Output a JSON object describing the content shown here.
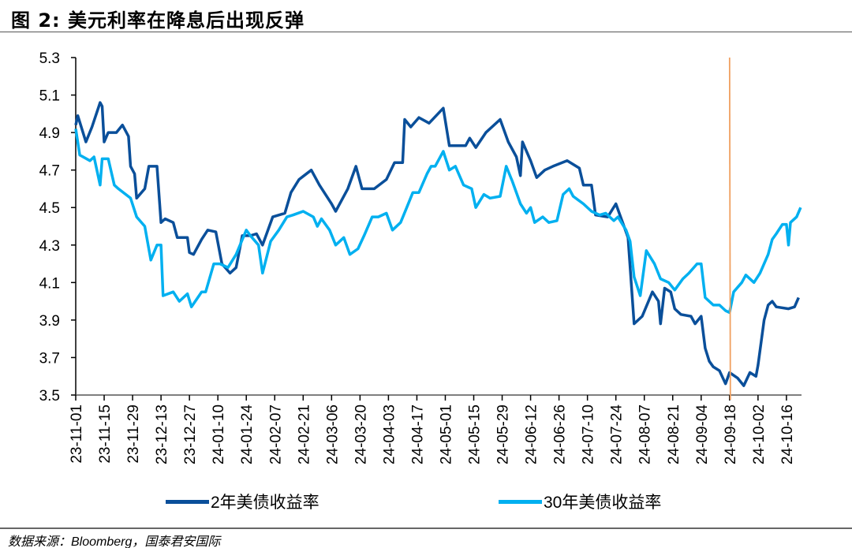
{
  "title": "图 2:  美元利率在降息后出现反弹",
  "source": "数据来源：Bloomberg，国泰君安国际",
  "chart_data": {
    "type": "line",
    "title": "图 2:  美元利率在降息后出现反弹",
    "ylim": [
      3.5,
      5.3
    ],
    "y_ticks": [
      "3.5",
      "3.7",
      "3.9",
      "4.1",
      "4.3",
      "4.5",
      "4.7",
      "4.9",
      "5.1",
      "5.3"
    ],
    "x_range": [
      "23-11-01",
      "24-10-23"
    ],
    "x_tick_labels": [
      "23-11-01",
      "23-11-15",
      "23-11-29",
      "23-12-13",
      "23-12-27",
      "24-01-10",
      "24-01-24",
      "24-02-07",
      "24-02-21",
      "24-03-06",
      "24-03-20",
      "24-04-03",
      "24-04-17",
      "24-05-01",
      "24-05-15",
      "24-05-29",
      "24-06-12",
      "24-06-26",
      "24-07-10",
      "24-07-24",
      "24-08-07",
      "24-08-21",
      "24-09-04",
      "24-09-18",
      "24-10-02",
      "24-10-16"
    ],
    "grid": false,
    "legend_placement": "bottom",
    "vertical_marker": {
      "date": "24-09-18",
      "color": "#f0a060"
    },
    "series": [
      {
        "name": "2年美债收益率",
        "color": "#0a4f9a",
        "points": [
          [
            "23-11-01",
            4.94
          ],
          [
            "23-11-02",
            4.99
          ],
          [
            "23-11-06",
            4.85
          ],
          [
            "23-11-09",
            4.93
          ],
          [
            "23-11-13",
            5.06
          ],
          [
            "23-11-14",
            5.04
          ],
          [
            "23-11-15",
            4.85
          ],
          [
            "23-11-17",
            4.9
          ],
          [
            "23-11-21",
            4.9
          ],
          [
            "23-11-24",
            4.94
          ],
          [
            "23-11-27",
            4.88
          ],
          [
            "23-11-28",
            4.72
          ],
          [
            "23-11-30",
            4.68
          ],
          [
            "23-12-01",
            4.55
          ],
          [
            "23-12-05",
            4.6
          ],
          [
            "23-12-07",
            4.72
          ],
          [
            "23-12-11",
            4.72
          ],
          [
            "23-12-13",
            4.42
          ],
          [
            "23-12-15",
            4.44
          ],
          [
            "23-12-19",
            4.42
          ],
          [
            "23-12-21",
            4.34
          ],
          [
            "23-12-26",
            4.34
          ],
          [
            "23-12-27",
            4.26
          ],
          [
            "23-12-29",
            4.25
          ],
          [
            "24-01-02",
            4.33
          ],
          [
            "24-01-05",
            4.38
          ],
          [
            "24-01-09",
            4.37
          ],
          [
            "24-01-12",
            4.2
          ],
          [
            "24-01-16",
            4.15
          ],
          [
            "24-01-19",
            4.18
          ],
          [
            "24-01-22",
            4.35
          ],
          [
            "24-01-26",
            4.35
          ],
          [
            "24-01-29",
            4.36
          ],
          [
            "24-02-01",
            4.3
          ],
          [
            "24-02-06",
            4.45
          ],
          [
            "24-02-12",
            4.47
          ],
          [
            "24-02-15",
            4.58
          ],
          [
            "24-02-19",
            4.65
          ],
          [
            "24-02-25",
            4.7
          ],
          [
            "24-02-29",
            4.62
          ],
          [
            "24-03-06",
            4.52
          ],
          [
            "24-03-08",
            4.48
          ],
          [
            "24-03-14",
            4.6
          ],
          [
            "24-03-18",
            4.72
          ],
          [
            "24-03-21",
            4.6
          ],
          [
            "24-03-27",
            4.6
          ],
          [
            "24-04-02",
            4.65
          ],
          [
            "24-04-06",
            4.74
          ],
          [
            "24-04-10",
            4.74
          ],
          [
            "24-04-11",
            4.97
          ],
          [
            "24-04-14",
            4.93
          ],
          [
            "24-04-18",
            4.98
          ],
          [
            "24-04-23",
            4.95
          ],
          [
            "24-04-30",
            5.03
          ],
          [
            "24-05-03",
            4.83
          ],
          [
            "24-05-11",
            4.83
          ],
          [
            "24-05-13",
            4.87
          ],
          [
            "24-05-16",
            4.82
          ],
          [
            "24-05-21",
            4.9
          ],
          [
            "24-05-28",
            4.97
          ],
          [
            "24-06-01",
            4.85
          ],
          [
            "24-06-05",
            4.77
          ],
          [
            "24-06-07",
            4.67
          ],
          [
            "24-06-08",
            4.85
          ],
          [
            "24-06-12",
            4.75
          ],
          [
            "24-06-15",
            4.66
          ],
          [
            "24-06-19",
            4.7
          ],
          [
            "24-06-23",
            4.72
          ],
          [
            "24-06-30",
            4.75
          ],
          [
            "24-07-06",
            4.71
          ],
          [
            "24-07-08",
            4.62
          ],
          [
            "24-07-12",
            4.62
          ],
          [
            "24-07-14",
            4.46
          ],
          [
            "24-07-20",
            4.45
          ],
          [
            "24-07-24",
            4.52
          ],
          [
            "24-07-28",
            4.4
          ],
          [
            "24-07-30",
            4.34
          ],
          [
            "24-08-02",
            3.88
          ],
          [
            "24-08-06",
            3.92
          ],
          [
            "24-08-11",
            4.05
          ],
          [
            "24-08-14",
            4.0
          ],
          [
            "24-08-15",
            3.88
          ],
          [
            "24-08-17",
            4.07
          ],
          [
            "24-08-20",
            4.05
          ],
          [
            "24-08-22",
            3.96
          ],
          [
            "24-08-25",
            3.93
          ],
          [
            "24-08-30",
            3.92
          ],
          [
            "24-09-01",
            3.88
          ],
          [
            "24-09-04",
            3.92
          ],
          [
            "24-09-06",
            3.75
          ],
          [
            "24-09-08",
            3.68
          ],
          [
            "24-09-10",
            3.65
          ],
          [
            "24-09-13",
            3.63
          ],
          [
            "24-09-16",
            3.56
          ],
          [
            "24-09-18",
            3.62
          ],
          [
            "24-09-22",
            3.59
          ],
          [
            "24-09-25",
            3.55
          ],
          [
            "24-09-28",
            3.62
          ],
          [
            "24-10-01",
            3.6
          ],
          [
            "24-10-02",
            3.66
          ],
          [
            "24-10-05",
            3.9
          ],
          [
            "24-10-07",
            3.98
          ],
          [
            "24-10-09",
            4.0
          ],
          [
            "24-10-11",
            3.97
          ],
          [
            "24-10-17",
            3.96
          ],
          [
            "24-10-20",
            3.97
          ],
          [
            "24-10-22",
            4.02
          ]
        ]
      },
      {
        "name": "30年美债收益率",
        "color": "#00b0f0",
        "points": [
          [
            "23-11-01",
            4.92
          ],
          [
            "23-11-03",
            4.78
          ],
          [
            "23-11-08",
            4.75
          ],
          [
            "23-11-10",
            4.77
          ],
          [
            "23-11-13",
            4.62
          ],
          [
            "23-11-14",
            4.76
          ],
          [
            "23-11-17",
            4.76
          ],
          [
            "23-11-20",
            4.62
          ],
          [
            "23-11-22",
            4.6
          ],
          [
            "23-11-28",
            4.55
          ],
          [
            "23-12-01",
            4.45
          ],
          [
            "23-12-05",
            4.4
          ],
          [
            "23-12-08",
            4.22
          ],
          [
            "23-12-11",
            4.3
          ],
          [
            "23-12-13",
            4.3
          ],
          [
            "23-12-14",
            4.03
          ],
          [
            "23-12-19",
            4.05
          ],
          [
            "23-12-22",
            4.0
          ],
          [
            "23-12-26",
            4.04
          ],
          [
            "23-12-28",
            3.97
          ],
          [
            "24-01-02",
            4.05
          ],
          [
            "24-01-04",
            4.05
          ],
          [
            "24-01-08",
            4.2
          ],
          [
            "24-01-11",
            4.2
          ],
          [
            "24-01-15",
            4.18
          ],
          [
            "24-01-19",
            4.25
          ],
          [
            "24-01-24",
            4.38
          ],
          [
            "24-01-26",
            4.35
          ],
          [
            "24-01-30",
            4.3
          ],
          [
            "24-02-01",
            4.15
          ],
          [
            "24-02-05",
            4.32
          ],
          [
            "24-02-09",
            4.38
          ],
          [
            "24-02-13",
            4.45
          ],
          [
            "24-02-16",
            4.46
          ],
          [
            "24-02-21",
            4.48
          ],
          [
            "24-02-26",
            4.45
          ],
          [
            "24-02-28",
            4.4
          ],
          [
            "24-03-01",
            4.44
          ],
          [
            "24-03-05",
            4.38
          ],
          [
            "24-03-08",
            4.3
          ],
          [
            "24-03-12",
            4.34
          ],
          [
            "24-03-15",
            4.25
          ],
          [
            "24-03-19",
            4.28
          ],
          [
            "24-03-22",
            4.35
          ],
          [
            "24-03-26",
            4.45
          ],
          [
            "24-03-29",
            4.45
          ],
          [
            "24-04-02",
            4.47
          ],
          [
            "24-04-05",
            4.38
          ],
          [
            "24-04-09",
            4.42
          ],
          [
            "24-04-12",
            4.5
          ],
          [
            "24-04-15",
            4.58
          ],
          [
            "24-04-18",
            4.58
          ],
          [
            "24-04-22",
            4.68
          ],
          [
            "24-04-24",
            4.72
          ],
          [
            "24-04-26",
            4.72
          ],
          [
            "24-04-30",
            4.8
          ],
          [
            "24-05-03",
            4.7
          ],
          [
            "24-05-06",
            4.72
          ],
          [
            "24-05-10",
            4.62
          ],
          [
            "24-05-14",
            4.6
          ],
          [
            "24-05-16",
            4.5
          ],
          [
            "24-05-20",
            4.57
          ],
          [
            "24-05-23",
            4.55
          ],
          [
            "24-05-28",
            4.56
          ],
          [
            "24-05-31",
            4.72
          ],
          [
            "24-06-03",
            4.64
          ],
          [
            "24-06-07",
            4.52
          ],
          [
            "24-06-10",
            4.47
          ],
          [
            "24-06-12",
            4.5
          ],
          [
            "24-06-14",
            4.42
          ],
          [
            "24-06-18",
            4.45
          ],
          [
            "24-06-21",
            4.42
          ],
          [
            "24-06-25",
            4.43
          ],
          [
            "24-06-28",
            4.57
          ],
          [
            "24-07-01",
            4.6
          ],
          [
            "24-07-03",
            4.56
          ],
          [
            "24-07-08",
            4.52
          ],
          [
            "24-07-12",
            4.48
          ],
          [
            "24-07-16",
            4.46
          ],
          [
            "24-07-19",
            4.47
          ],
          [
            "24-07-23",
            4.43
          ],
          [
            "24-07-25",
            4.45
          ],
          [
            "24-07-29",
            4.38
          ],
          [
            "24-07-31",
            4.32
          ],
          [
            "24-08-02",
            4.13
          ],
          [
            "24-08-05",
            4.03
          ],
          [
            "24-08-08",
            4.27
          ],
          [
            "24-08-12",
            4.2
          ],
          [
            "24-08-15",
            4.12
          ],
          [
            "24-08-19",
            4.1
          ],
          [
            "24-08-22",
            4.06
          ],
          [
            "24-08-26",
            4.12
          ],
          [
            "24-08-29",
            4.15
          ],
          [
            "24-09-02",
            4.2
          ],
          [
            "24-09-04",
            4.2
          ],
          [
            "24-09-06",
            4.02
          ],
          [
            "24-09-10",
            3.98
          ],
          [
            "24-09-13",
            3.98
          ],
          [
            "24-09-16",
            3.95
          ],
          [
            "24-09-18",
            3.94
          ],
          [
            "24-09-20",
            4.05
          ],
          [
            "24-09-24",
            4.1
          ],
          [
            "24-09-26",
            4.14
          ],
          [
            "24-09-30",
            4.1
          ],
          [
            "24-10-03",
            4.15
          ],
          [
            "24-10-07",
            4.25
          ],
          [
            "24-10-09",
            4.33
          ],
          [
            "24-10-11",
            4.36
          ],
          [
            "24-10-14",
            4.41
          ],
          [
            "24-10-16",
            4.41
          ],
          [
            "24-10-17",
            4.3
          ],
          [
            "24-10-18",
            4.42
          ],
          [
            "24-10-21",
            4.45
          ],
          [
            "24-10-23",
            4.5
          ]
        ]
      }
    ]
  }
}
